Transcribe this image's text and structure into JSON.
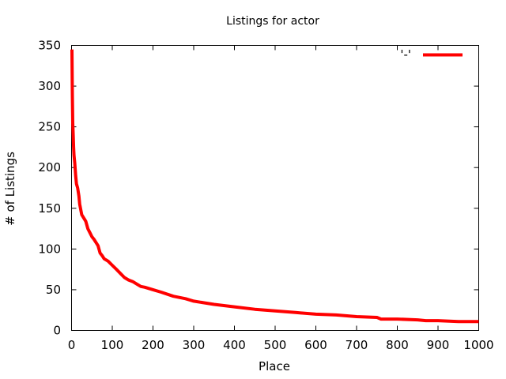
{
  "chart_data": {
    "type": "line",
    "title": "Listings for actor",
    "xlabel": "Place",
    "ylabel": "# of Listings",
    "xlim": [
      0,
      1000
    ],
    "ylim": [
      0,
      350
    ],
    "xticks": [
      0,
      100,
      200,
      300,
      400,
      500,
      600,
      700,
      800,
      900,
      1000
    ],
    "yticks": [
      0,
      50,
      100,
      150,
      200,
      250,
      300,
      350
    ],
    "grid": false,
    "legend": {
      "position": "top-right",
      "entries": [
        {
          "label": "'-'",
          "color": "#ff0000"
        }
      ]
    },
    "series": [
      {
        "color": "#ff0000",
        "x": [
          1,
          2,
          3,
          4,
          5,
          6,
          8,
          10,
          12,
          15,
          18,
          20,
          25,
          30,
          35,
          40,
          45,
          50,
          55,
          60,
          65,
          70,
          75,
          80,
          90,
          100,
          110,
          120,
          130,
          140,
          150,
          160,
          170,
          180,
          200,
          220,
          250,
          280,
          300,
          350,
          400,
          450,
          500,
          550,
          600,
          650,
          700,
          750,
          760,
          800,
          850,
          870,
          900,
          950,
          1000
        ],
        "y": [
          345,
          290,
          255,
          240,
          225,
          215,
          205,
          190,
          180,
          175,
          165,
          155,
          142,
          138,
          134,
          125,
          120,
          115,
          112,
          108,
          104,
          95,
          92,
          88,
          85,
          80,
          75,
          70,
          65,
          62,
          60,
          57,
          54,
          53,
          50,
          47,
          42,
          39,
          36,
          32,
          29,
          26,
          24,
          22,
          20,
          19,
          17,
          16,
          14,
          14,
          13,
          12,
          12,
          11,
          11
        ]
      }
    ]
  }
}
